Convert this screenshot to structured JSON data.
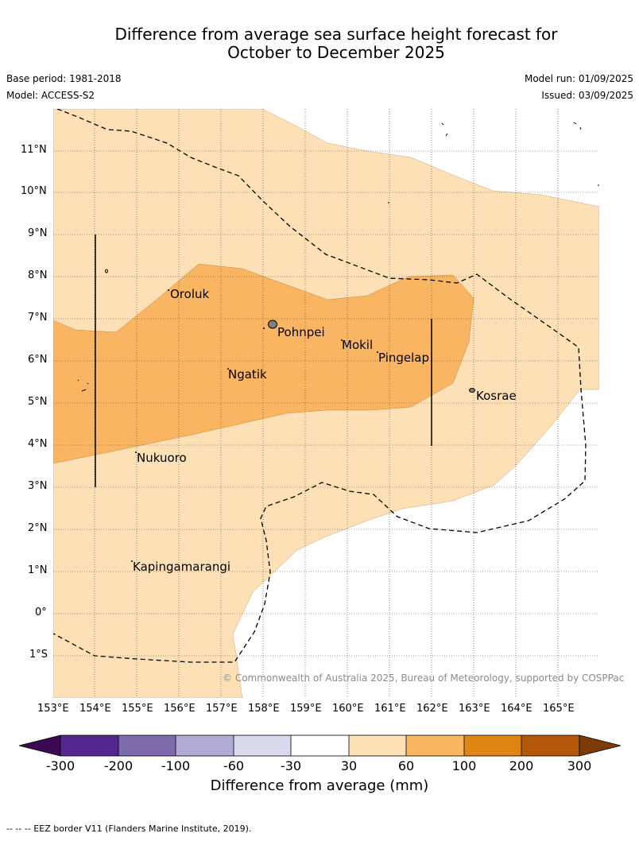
{
  "title": {
    "line1": "Difference from average sea surface height forecast for",
    "line2": "October to December 2025"
  },
  "meta": {
    "base_period": "Base period: 1981-2018",
    "model": "Model: ACCESS-S2",
    "model_run": "Model run: 01/09/2025",
    "issued": "Issued: 03/09/2025"
  },
  "map": {
    "lat_labels": [
      "11°N",
      "10°N",
      "9°N",
      "8°N",
      "7°N",
      "6°N",
      "5°N",
      "4°N",
      "3°N",
      "2°N",
      "1°N",
      "0°",
      "1°S"
    ],
    "lon_labels": [
      "153°E",
      "154°E",
      "155°E",
      "156°E",
      "157°E",
      "158°E",
      "159°E",
      "160°E",
      "161°E",
      "162°E",
      "163°E",
      "164°E",
      "165°E"
    ],
    "places": [
      "Oroluk",
      "Pohnpei",
      "Mokil",
      "Pingelap",
      "Ngatik",
      "Kosrae",
      "Nukuoro",
      "Kapingamarangi"
    ],
    "copyright": "© Commonwealth of Australia 2025, Bureau of Meteorology, supported by COSPPac",
    "fill_colors": {
      "30_to_60": "#fde0b6",
      "60_to_100": "#f9b562",
      "land": "#808080"
    }
  },
  "colorbar": {
    "labels": [
      "-300",
      "-200",
      "-100",
      "-60",
      "-30",
      "30",
      "60",
      "100",
      "200",
      "300"
    ],
    "colors": [
      "#3c0a52",
      "#54278f",
      "#7d6bae",
      "#b1aad4",
      "#d8d9ec",
      "#ffffff",
      "#fde0b6",
      "#f9b562",
      "#e08414",
      "#b35808",
      "#7e3a07"
    ],
    "title": "Difference from average (mm)"
  },
  "footnote": "--  --  -- EEZ border V11 (Flanders Marine Institute, 2019)."
}
